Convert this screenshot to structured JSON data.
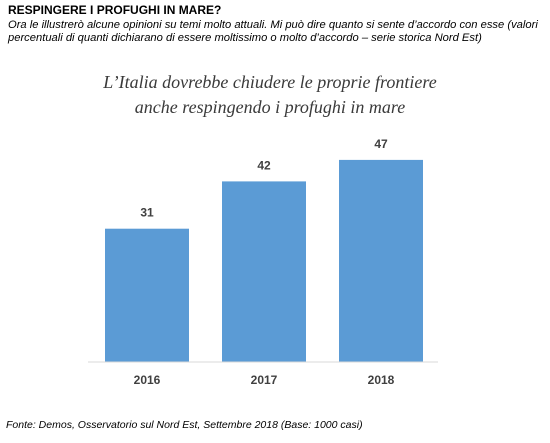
{
  "header": {
    "title": "RESPINGERE I PROFUGHI IN MARE?",
    "intro": "Ora le illustrerò alcune opinioni su temi molto attuali. Mi può dire quanto si sente d’accordo con esse (valori percentuali di quanti dichiarano di essere moltissimo o molto d’accordo – serie storica Nord Est)"
  },
  "chart_data": {
    "type": "bar",
    "title_line1": "L’Italia dovrebbe chiudere le proprie frontiere",
    "title_line2": "anche respingendo i profughi in mare",
    "categories": [
      "2016",
      "2017",
      "2018"
    ],
    "values": [
      31,
      42,
      47
    ],
    "data_labels": [
      "31",
      "42",
      "47"
    ],
    "ylim": [
      0,
      50
    ],
    "bar_color": "#5b9bd5",
    "grid": false,
    "legend": "none"
  },
  "footer": {
    "source": "Fonte: Demos, Osservatorio sul Nord Est, Settembre  2018 (Base: 1000 casi)"
  }
}
